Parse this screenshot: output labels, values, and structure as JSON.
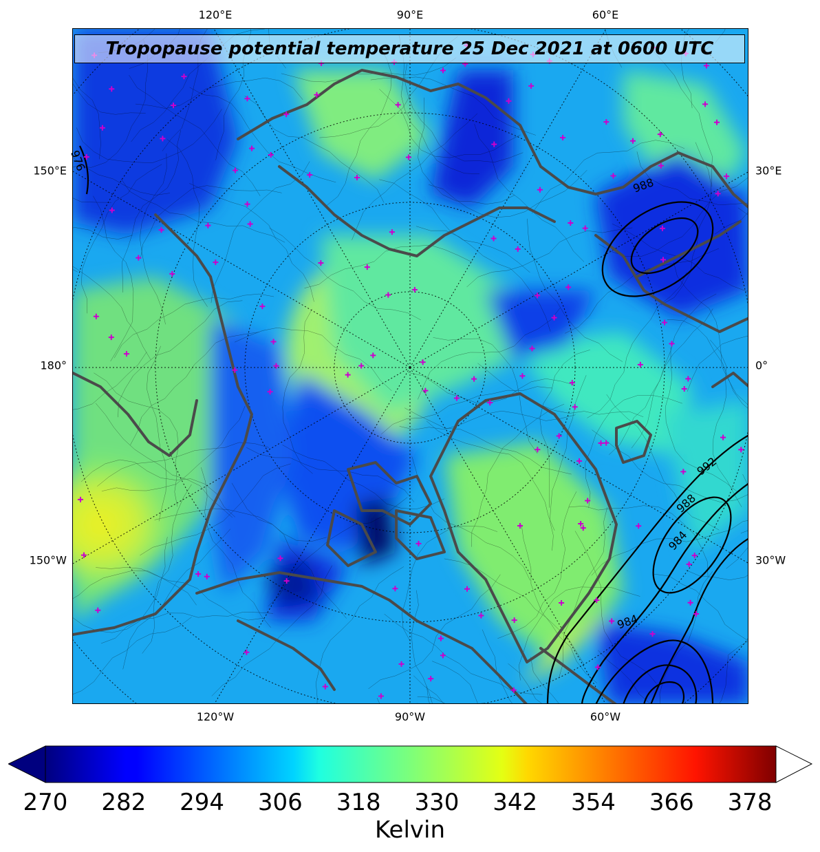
{
  "title": "Tropopause potential temperature 25 Dec 2021 at 0600 UTC",
  "map": {
    "projection": "north-polar-stereographic",
    "field": "tropopause potential temperature",
    "contours": "mean sea level pressure",
    "coastline_color": "#4a4a4a",
    "station_marker_color": "#cc00cc",
    "top_ticks": [
      "120°E",
      "90°E",
      "60°E"
    ],
    "bottom_ticks": [
      "120°W",
      "90°W",
      "60°W"
    ],
    "left_ticks": [
      "150°E",
      "180°",
      "150°W"
    ],
    "right_ticks": [
      "30°E",
      "0°",
      "30°W"
    ],
    "pressure_labels": [
      "992",
      "988",
      "984",
      "984",
      "988",
      "976"
    ],
    "upper_right_label": "988",
    "upper_left_label": "976"
  },
  "colorbar": {
    "colormap": "jet",
    "min": 270,
    "max": 382,
    "extend": "both",
    "ticks": [
      "270",
      "282",
      "294",
      "306",
      "318",
      "330",
      "342",
      "354",
      "366",
      "378"
    ],
    "label": "Kelvin"
  }
}
